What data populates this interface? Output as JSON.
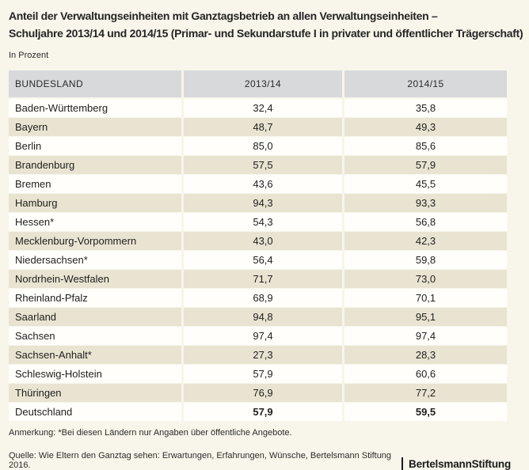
{
  "header": {
    "title_line1": "Anteil der Verwaltungseinheiten mit Ganztagsbetrieb an allen Verwaltungseinheiten –",
    "title_line2": "Schuljahre 2013/14 und 2014/15 (Primar- und Sekundarstufe I in privater und öffentlicher Trägerschaft)",
    "unit_label": "In Prozent"
  },
  "table": {
    "headers": [
      "BUNDESLAND",
      "2013/14",
      "2014/15"
    ],
    "rows": [
      {
        "name": "Baden-Württemberg",
        "v2013": "32,4",
        "v2014": "35,8",
        "emphasis": false
      },
      {
        "name": "Bayern",
        "v2013": "48,7",
        "v2014": "49,3",
        "emphasis": false
      },
      {
        "name": "Berlin",
        "v2013": "85,0",
        "v2014": "85,6",
        "emphasis": false
      },
      {
        "name": "Brandenburg",
        "v2013": "57,5",
        "v2014": "57,9",
        "emphasis": false
      },
      {
        "name": "Bremen",
        "v2013": "43,6",
        "v2014": "45,5",
        "emphasis": false
      },
      {
        "name": "Hamburg",
        "v2013": "94,3",
        "v2014": "93,3",
        "emphasis": false
      },
      {
        "name": "Hessen*",
        "v2013": "54,3",
        "v2014": "56,8",
        "emphasis": false
      },
      {
        "name": "Mecklenburg-Vorpommern",
        "v2013": "43,0",
        "v2014": "42,3",
        "emphasis": false
      },
      {
        "name": "Niedersachsen*",
        "v2013": "56,4",
        "v2014": "59,8",
        "emphasis": false
      },
      {
        "name": "Nordrhein-Westfalen",
        "v2013": "71,7",
        "v2014": "73,0",
        "emphasis": false
      },
      {
        "name": "Rheinland-Pfalz",
        "v2013": "68,9",
        "v2014": "70,1",
        "emphasis": false
      },
      {
        "name": "Saarland",
        "v2013": "94,8",
        "v2014": "95,1",
        "emphasis": false
      },
      {
        "name": "Sachsen",
        "v2013": "97,4",
        "v2014": "97,4",
        "emphasis": false
      },
      {
        "name": "Sachsen-Anhalt*",
        "v2013": "27,3",
        "v2014": "28,3",
        "emphasis": false
      },
      {
        "name": "Schleswig-Holstein",
        "v2013": "57,9",
        "v2014": "60,6",
        "emphasis": false
      },
      {
        "name": "Thüringen",
        "v2013": "76,9",
        "v2014": "77,2",
        "emphasis": false
      },
      {
        "name": "Deutschland",
        "v2013": "57,9",
        "v2014": "59,5",
        "emphasis": true
      }
    ]
  },
  "footer": {
    "note": "Anmerkung: *Bei diesen Ländern nur Angaben über öffentliche Angebote.",
    "source": "Quelle: Wie Eltern den Ganztag sehen: Erwartungen, Erfahrungen, Wünsche, Bertelsmann Stiftung 2016.",
    "logo": {
      "part1": "Bertelsmann",
      "part2": "Stiftung"
    }
  },
  "colors": {
    "page_background": "#f8f5ea",
    "header_row": "#d8d9da",
    "row_beige": "#e9e4d1",
    "row_white": "#fffefa",
    "text": "#1e1e1e"
  },
  "chart_data": {
    "type": "table",
    "title": "Anteil der Verwaltungseinheiten mit Ganztagsbetrieb an allen Verwaltungseinheiten – Schuljahre 2013/14 und 2014/15 (Primar- und Sekundarstufe I in privater und öffentlicher Trägerschaft)",
    "unit": "In Prozent",
    "categories": [
      "Baden-Württemberg",
      "Bayern",
      "Berlin",
      "Brandenburg",
      "Bremen",
      "Hamburg",
      "Hessen*",
      "Mecklenburg-Vorpommern",
      "Niedersachsen*",
      "Nordrhein-Westfalen",
      "Rheinland-Pfalz",
      "Saarland",
      "Sachsen",
      "Sachsen-Anhalt*",
      "Schleswig-Holstein",
      "Thüringen",
      "Deutschland"
    ],
    "series": [
      {
        "name": "2013/14",
        "values": [
          32.4,
          48.7,
          85.0,
          57.5,
          43.6,
          94.3,
          54.3,
          43.0,
          56.4,
          71.7,
          68.9,
          94.8,
          97.4,
          27.3,
          57.9,
          76.9,
          57.9
        ]
      },
      {
        "name": "2014/15",
        "values": [
          35.8,
          49.3,
          85.6,
          57.9,
          45.5,
          93.3,
          56.8,
          42.3,
          59.8,
          73.0,
          70.1,
          95.1,
          97.4,
          28.3,
          60.6,
          77.2,
          59.5
        ]
      }
    ],
    "footnote": "Anmerkung: *Bei diesen Ländern nur Angaben über öffentliche Angebote.",
    "source": "Quelle: Wie Eltern den Ganztag sehen: Erwartungen, Erfahrungen, Wünsche, Bertelsmann Stiftung 2016."
  }
}
